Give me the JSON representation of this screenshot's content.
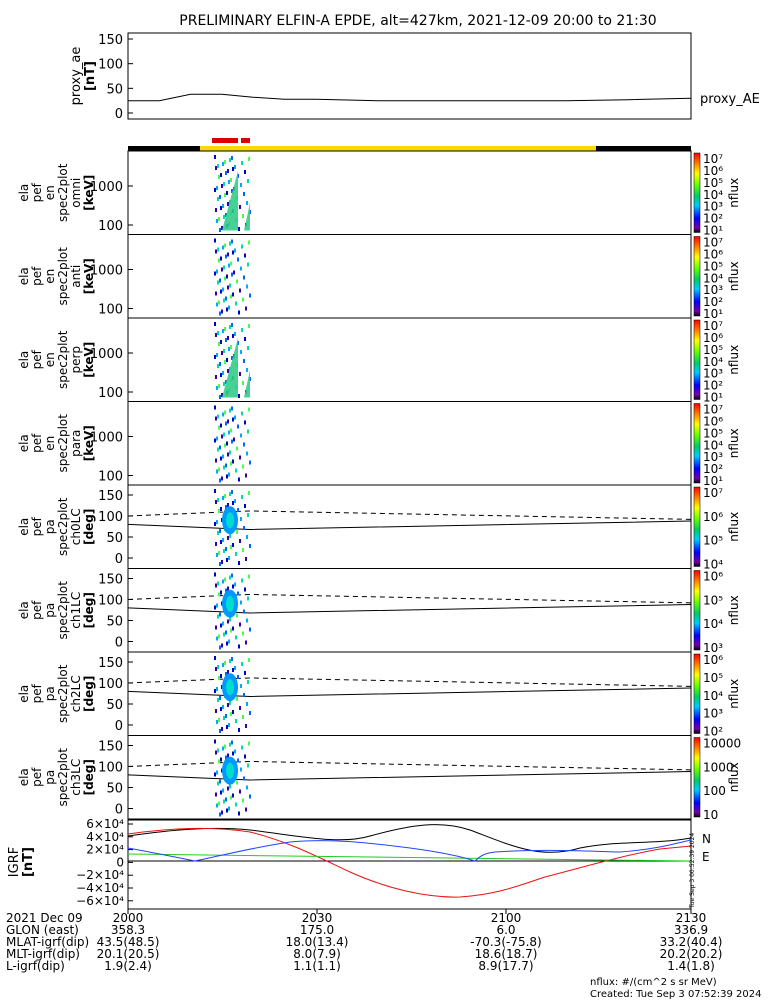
{
  "title": "PRELIMINARY ELFIN-A EPDE, alt=427km, 2021-12-09 20:00 to 21:30",
  "proxy_panel": {
    "ylabel": "proxy_ae\n[nT]",
    "yticks": [
      "150",
      "100",
      "50",
      "0"
    ],
    "legend": "proxy_AE"
  },
  "spec_panels": [
    {
      "ylabel": [
        "ela",
        "pef",
        "en",
        "spec2plot",
        "omni",
        "[keV]"
      ],
      "yticks": [
        "1000",
        "100"
      ]
    },
    {
      "ylabel": [
        "ela",
        "pef",
        "en",
        "spec2plot",
        "anti",
        "[keV]"
      ],
      "yticks": [
        "1000",
        "100"
      ]
    },
    {
      "ylabel": [
        "ela",
        "pef",
        "en",
        "spec2plot",
        "perp",
        "[keV]"
      ],
      "yticks": [
        "1000",
        "100"
      ]
    },
    {
      "ylabel": [
        "ela",
        "pef",
        "en",
        "spec2plot",
        "para",
        "[keV]"
      ],
      "yticks": [
        "1000",
        "100"
      ]
    },
    {
      "ylabel": [
        "ela",
        "pef",
        "pa",
        "spec2plot",
        "ch0LC",
        "[deg]"
      ],
      "yticks": [
        "150",
        "100",
        "50",
        "0"
      ]
    },
    {
      "ylabel": [
        "ela",
        "pef",
        "pa",
        "spec2plot",
        "ch1LC",
        "[deg]"
      ],
      "yticks": [
        "150",
        "100",
        "50",
        "0"
      ]
    },
    {
      "ylabel": [
        "ela",
        "pef",
        "pa",
        "spec2plot",
        "ch2LC",
        "[deg]"
      ],
      "yticks": [
        "150",
        "100",
        "50",
        "0"
      ]
    },
    {
      "ylabel": [
        "ela",
        "pef",
        "pa",
        "spec2plot",
        "ch3LC",
        "[deg]"
      ],
      "yticks": [
        "150",
        "100",
        "50",
        "0"
      ]
    }
  ],
  "colorbars": [
    {
      "label": "nflux",
      "ticks": [
        "10⁷",
        "10⁶",
        "10⁵",
        "10⁴",
        "10³",
        "10²",
        "10¹"
      ]
    },
    {
      "label": "nflux",
      "ticks": [
        "10⁷",
        "10⁶",
        "10⁵",
        "10⁴",
        "10³",
        "10²",
        "10¹"
      ]
    },
    {
      "label": "nflux",
      "ticks": [
        "10⁷",
        "10⁶",
        "10⁵",
        "10⁴",
        "10³",
        "10²",
        "10¹"
      ]
    },
    {
      "label": "nflux",
      "ticks": [
        "10⁷",
        "10⁶",
        "10⁵",
        "10⁴",
        "10³",
        "10²",
        "10¹"
      ]
    },
    {
      "label": "nflux",
      "ticks": [
        "10⁷",
        "10⁶",
        "10⁵",
        "10⁴"
      ]
    },
    {
      "label": "nflux",
      "ticks": [
        "10⁶",
        "10⁵",
        "10⁴",
        "10³"
      ]
    },
    {
      "label": "nflux",
      "ticks": [
        "10⁶",
        "10⁵",
        "10⁴",
        "10³",
        "10²"
      ]
    },
    {
      "label": "nflux",
      "ticks": [
        "10000",
        "1000",
        "100",
        "10"
      ]
    }
  ],
  "igrf_panel": {
    "ylabel": "IGRF\n[nT]",
    "yticks": [
      "6×10⁴",
      "4×10⁴",
      "2×10⁴",
      "0",
      "−2×10⁴",
      "−4×10⁴",
      "−6×10⁴"
    ],
    "legend": [
      {
        "label": "N",
        "color": "#ff3333"
      },
      {
        "label": "E",
        "color": "#33dd33"
      }
    ]
  },
  "footer": {
    "row_labels": [
      "2021 Dec 09",
      "GLON (east)",
      "MLAT-igrf(dip)",
      "MLT-igrf(dip)",
      "L-igrf(dip)"
    ],
    "columns": [
      {
        "time": "2000",
        "values": [
          "358.3",
          "43.5(48.5)",
          "20.1(20.5)",
          "1.9(2.4)"
        ]
      },
      {
        "time": "2030",
        "values": [
          "175.0",
          "18.0(13.4)",
          "8.0(7.9)",
          "1.1(1.1)"
        ]
      },
      {
        "time": "2100",
        "values": [
          "6.0",
          "-70.3(-75.8)",
          "18.6(18.7)",
          "8.9(17.7)"
        ]
      },
      {
        "time": "2130",
        "values": [
          "336.9",
          "33.2(40.4)",
          "20.2(20.2)",
          "1.4(1.8)"
        ]
      }
    ],
    "units_note": "nflux: #/(cm^2 s sr MeV)",
    "created": "Created: Tue Sep  3 07:52:39 2024",
    "side_stamp": "Tue Sep  3 00:52:39 2024"
  },
  "chart_data": {
    "type": "line",
    "title": "PRELIMINARY ELFIN-A EPDE, alt=427km, 2021-12-09 20:00 to 21:30",
    "xlabel": "",
    "x_ticks": [
      "2000",
      "2030",
      "2100",
      "2130"
    ],
    "xlim": [
      "20:00",
      "21:30"
    ],
    "series": [
      {
        "name": "proxy_AE",
        "x_minutes": [
          0,
          5,
          10,
          15,
          20,
          25,
          30,
          40,
          50,
          60,
          70,
          80,
          90
        ],
        "y_nT": [
          25,
          25,
          38,
          38,
          32,
          28,
          28,
          25,
          25,
          25,
          25,
          27,
          30
        ]
      }
    ],
    "ylim": [
      0,
      150
    ],
    "colors": {
      "black": "#000000",
      "yellow": "#ffd700",
      "red": "#dd0000",
      "green": "#33dd33",
      "blue": "#2244ff"
    }
  }
}
